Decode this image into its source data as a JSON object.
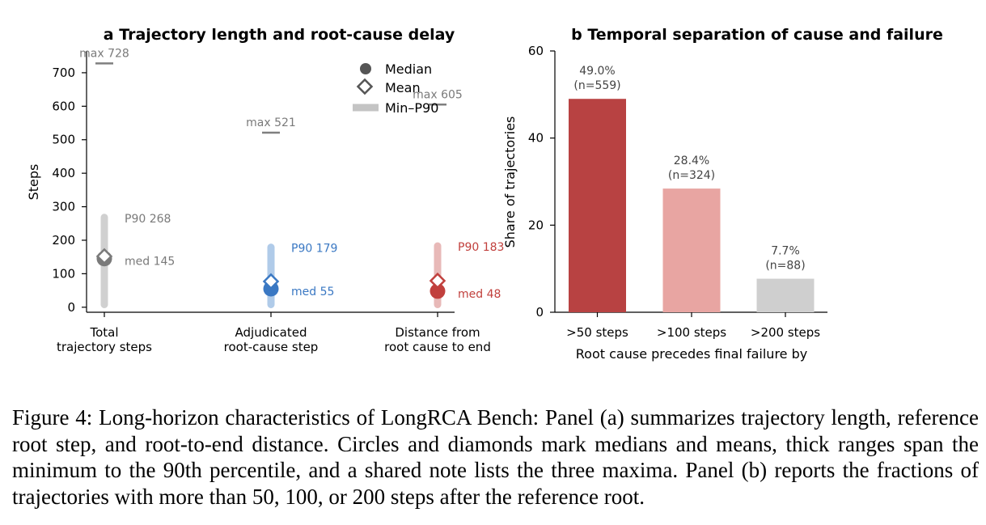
{
  "panel_a": {
    "title": "a  Trajectory length and root-cause delay",
    "ylabel": "Steps",
    "legend": [
      "Median",
      "Mean",
      "Min–P90"
    ]
  },
  "panel_b": {
    "title": "b  Temporal separation of cause and failure",
    "ylabel": "Share of trajectories",
    "xlabel": "Root cause precedes final failure by"
  },
  "chart_data": [
    {
      "type": "scatter",
      "title": "a  Trajectory length and root-cause delay",
      "ylabel": "Steps",
      "ylim": [
        -15,
        765
      ],
      "yticks": [
        0,
        100,
        200,
        300,
        400,
        500,
        600,
        700
      ],
      "categories": [
        "Total\ntrajectory steps",
        "Adjudicated\nroot-cause step",
        "Distance from\nroot cause to end"
      ],
      "series": [
        {
          "name": "Median",
          "values": [
            145,
            55,
            48
          ]
        },
        {
          "name": "Mean",
          "values": [
            152,
            77,
            79
          ]
        },
        {
          "name": "Min–P90",
          "ranges": [
            [
              8,
              268
            ],
            [
              8,
              179
            ],
            [
              8,
              183
            ]
          ]
        }
      ],
      "max": [
        728,
        521,
        605
      ],
      "max_labels": [
        "max 728",
        "max 521",
        "max 605"
      ],
      "p90_labels": [
        "P90 268",
        "P90 179",
        "P90 183"
      ],
      "median_labels": [
        "med 145",
        "med 55",
        "med 48"
      ],
      "colors": {
        "dark": [
          "#7a7a7a",
          "#3a78c3",
          "#c1403d"
        ],
        "light": [
          "#d0d0d0",
          "#b0cbe9",
          "#e8b9b8"
        ],
        "max_line": "#7f7f7f"
      },
      "legend_position": "top-right",
      "grid": false
    },
    {
      "type": "bar",
      "title": "b  Temporal separation of cause and failure",
      "categories": [
        ">50 steps",
        ">100 steps",
        ">200 steps"
      ],
      "values": [
        49.0,
        28.4,
        7.7
      ],
      "percent_labels": [
        "49.0%",
        "28.4%",
        "7.7%"
      ],
      "count_labels": [
        "(n=559)",
        "(n=324)",
        "(n=88)"
      ],
      "colors": [
        "#b84242",
        "#e8a5a2",
        "#cfcfcf"
      ],
      "xlabel": "Root cause precedes final failure by",
      "ylabel": "Share of trajectories",
      "ylim": [
        0,
        60
      ],
      "yticks": [
        0,
        20,
        40,
        60
      ],
      "grid": false
    }
  ],
  "caption": "Figure 4: Long-horizon characteristics of LongRCA Bench: Panel (a) summarizes trajectory length, reference root step, and root-to-end distance. Circles and diamonds mark medians and means, thick ranges span the minimum to the 90th percentile, and a shared note lists the three maxima. Panel (b) reports the fractions of trajectories with more than 50, 100, or 200 steps after the reference root."
}
